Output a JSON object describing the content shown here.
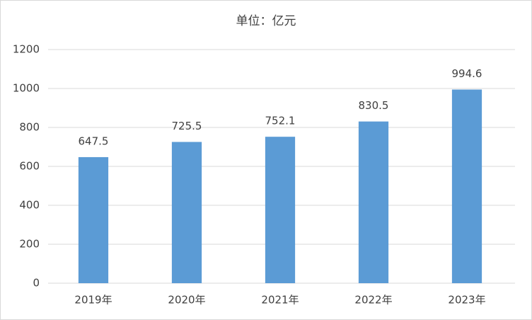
{
  "chart_data": {
    "type": "bar",
    "title": "单位：亿元",
    "categories": [
      "2019年",
      "2020年",
      "2021年",
      "2022年",
      "2023年"
    ],
    "values": [
      647.5,
      725.5,
      752.1,
      830.5,
      994.6
    ],
    "color": "#5b9bd5",
    "ylim": [
      0,
      1200
    ],
    "yticks": [
      0,
      200,
      400,
      600,
      800,
      1000,
      1200
    ],
    "grid": true
  }
}
